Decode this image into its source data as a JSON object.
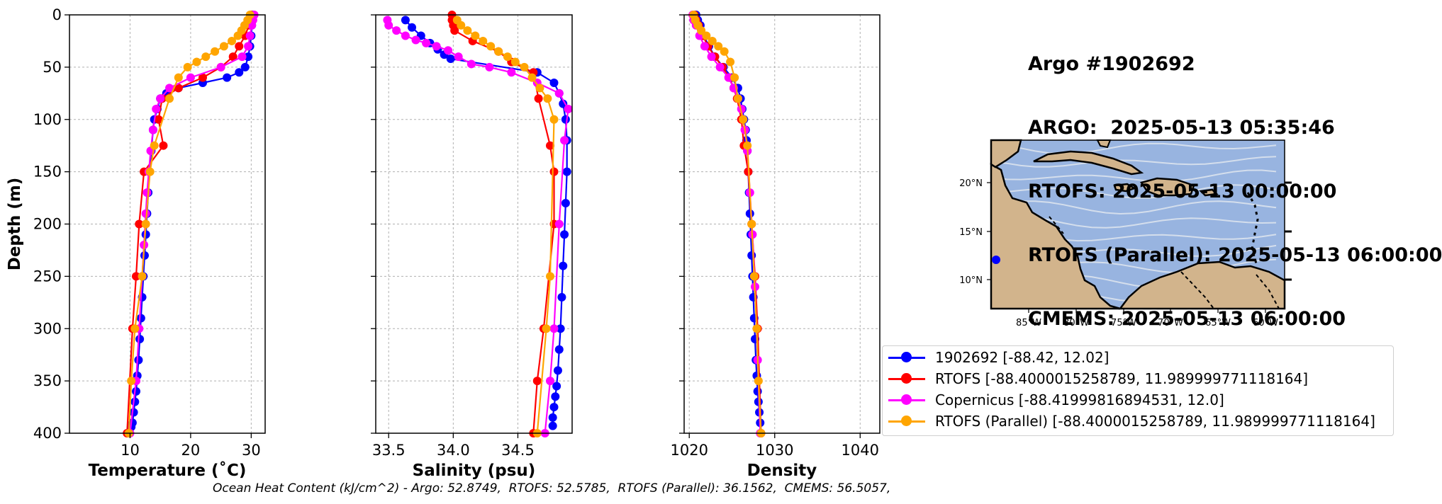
{
  "info_lines": [
    "Argo #1902692",
    "ARGO:  2025-05-13 05:35:46",
    "RTOFS: 2025-05-13 00:00:00",
    "RTOFS (Parallel): 2025-05-13 06:00:00",
    "CMEMS: 2025-05-13 06:00:00"
  ],
  "ohc_text": "Ocean Heat Content (kJ/cm^2) - Argo: 52.8749,  RTOFS: 52.5785,  RTOFS (Parallel): 36.1562,  CMEMS: 56.5057,",
  "legend": [
    {
      "label": "1902692 [-88.42, 12.02]",
      "color": "#0000ff"
    },
    {
      "label": "RTOFS [-88.4000015258789, 11.989999771118164]",
      "color": "#ff0000"
    },
    {
      "label": "Copernicus [-88.41999816894531, 12.0]",
      "color": "#ff00ff"
    },
    {
      "label": "RTOFS (Parallel) [-88.4000015258789, 11.989999771118164]",
      "color": "#ffa500"
    }
  ],
  "chart_data": [
    {
      "type": "line",
      "xlabel": "Temperature (˚C)",
      "ylabel": "Depth (m)",
      "xlim": [
        0,
        32.3
      ],
      "ylim": [
        400,
        0
      ],
      "xticks": [
        10,
        20,
        30
      ],
      "yticks": [
        0,
        50,
        100,
        150,
        200,
        250,
        300,
        350,
        400
      ],
      "grid": true,
      "series": [
        {
          "name": "1902692",
          "color": "#0000ff",
          "x": [
            30.2,
            30.1,
            30.0,
            29.8,
            29.5,
            29.0,
            28.0,
            26.0,
            22.0,
            18.0,
            16.0,
            15.0,
            14.5,
            14.0,
            13.8,
            13.5,
            13.2,
            13.0,
            12.8,
            12.6,
            12.4,
            12.2,
            12.0,
            11.8,
            11.6,
            11.4,
            11.2,
            11.0,
            10.8,
            10.6,
            10.4,
            10.2
          ],
          "y": [
            0,
            10,
            20,
            30,
            40,
            50,
            55,
            60,
            65,
            70,
            75,
            80,
            90,
            100,
            110,
            130,
            150,
            170,
            190,
            210,
            230,
            250,
            270,
            290,
            310,
            330,
            345,
            360,
            370,
            380,
            390,
            394
          ]
        },
        {
          "name": "RTOFS",
          "color": "#ff0000",
          "x": [
            30.0,
            29.6,
            29.0,
            28.0,
            27.0,
            25.0,
            22.0,
            18.0,
            15.3,
            14.7,
            15.5,
            12.3,
            11.5,
            11.0,
            10.4,
            9.5
          ],
          "y": [
            0,
            10,
            20,
            30,
            40,
            50,
            60,
            70,
            80,
            100,
            125,
            150,
            200,
            250,
            300,
            400
          ]
        },
        {
          "name": "Copernicus",
          "color": "#ff00ff",
          "x": [
            30.5,
            30.3,
            30.1,
            29.8,
            29.5,
            28.5,
            25.0,
            20.0,
            16.5,
            15.0,
            14.3,
            13.8,
            13.4,
            13.1,
            12.8,
            12.6,
            12.3,
            12.0,
            11.5,
            11.0,
            10.0
          ],
          "y": [
            0,
            5,
            10,
            20,
            30,
            40,
            50,
            60,
            70,
            80,
            90,
            110,
            130,
            150,
            170,
            190,
            220,
            250,
            300,
            350,
            400
          ]
        },
        {
          "name": "RTOFS (Parallel)",
          "color": "#ffa500",
          "x": [
            29.8,
            29.4,
            28.9,
            28.4,
            27.8,
            26.8,
            25.5,
            24.0,
            22.5,
            21.0,
            19.5,
            18.0,
            16.5,
            14.0,
            13.3,
            12.6,
            12.0,
            10.8,
            10.2,
            9.8
          ],
          "y": [
            0,
            5,
            10,
            15,
            20,
            25,
            30,
            35,
            40,
            45,
            50,
            60,
            80,
            125,
            150,
            200,
            250,
            300,
            350,
            400
          ]
        }
      ]
    },
    {
      "type": "line",
      "xlabel": "Salinity (psu)",
      "ylabel": "",
      "xlim": [
        33.4,
        34.92
      ],
      "ylim": [
        400,
        0
      ],
      "xticks": [
        33.5,
        34.0,
        34.5
      ],
      "yticks": [
        0,
        50,
        100,
        150,
        200,
        250,
        300,
        350,
        400
      ],
      "grid": true,
      "series": [
        {
          "name": "1902692",
          "color": "#0000ff",
          "x": [
            33.63,
            33.68,
            33.75,
            33.82,
            33.88,
            33.93,
            33.98,
            34.65,
            34.78,
            34.82,
            34.85,
            34.87,
            34.88,
            34.88,
            34.87,
            34.86,
            34.85,
            34.84,
            34.83,
            34.82,
            34.81,
            34.8,
            34.79,
            34.78,
            34.77,
            34.77
          ],
          "y": [
            5,
            12,
            20,
            27,
            33,
            38,
            42,
            55,
            65,
            75,
            85,
            100,
            120,
            150,
            180,
            210,
            240,
            270,
            300,
            320,
            340,
            355,
            365,
            375,
            385,
            393
          ]
        },
        {
          "name": "RTOFS",
          "color": "#ff0000",
          "x": [
            33.99,
            33.99,
            34.0,
            34.01,
            34.15,
            34.35,
            34.45,
            34.62,
            34.66,
            34.75,
            34.78,
            34.78,
            34.7,
            34.65,
            34.62
          ],
          "y": [
            0,
            5,
            10,
            15,
            25,
            35,
            45,
            55,
            80,
            125,
            150,
            200,
            300,
            350,
            400
          ]
        },
        {
          "name": "Copernicus",
          "color": "#ff00ff",
          "x": [
            33.49,
            33.5,
            33.56,
            33.63,
            33.71,
            33.79,
            33.87,
            33.96,
            34.04,
            34.14,
            34.28,
            34.45,
            34.65,
            34.82,
            34.89,
            34.86,
            34.82,
            34.78,
            34.75,
            34.71
          ],
          "y": [
            5,
            10,
            15,
            20,
            24,
            27,
            30,
            34,
            40,
            47,
            50,
            55,
            65,
            75,
            90,
            120,
            200,
            300,
            350,
            400
          ]
        },
        {
          "name": "RTOFS (Parallel)",
          "color": "#ffa500",
          "x": [
            34.03,
            34.06,
            34.11,
            34.17,
            34.23,
            34.29,
            34.35,
            34.42,
            34.48,
            34.55,
            34.61,
            34.67,
            34.73,
            34.78,
            34.75,
            34.72,
            34.65
          ],
          "y": [
            5,
            10,
            15,
            20,
            25,
            30,
            35,
            40,
            45,
            50,
            60,
            70,
            80,
            100,
            250,
            300,
            400
          ]
        }
      ]
    },
    {
      "type": "line",
      "xlabel": "Density",
      "ylabel": "",
      "xlim": [
        1019.4,
        1042.3
      ],
      "ylim": [
        400,
        0
      ],
      "xticks": [
        1020,
        1030,
        1040
      ],
      "yticks": [
        0,
        50,
        100,
        150,
        200,
        250,
        300,
        350,
        400
      ],
      "grid": true,
      "series": [
        {
          "name": "1902692",
          "color": "#0000ff",
          "x": [
            1020.8,
            1021.0,
            1021.3,
            1021.7,
            1022.3,
            1023.0,
            1024.0,
            1025.0,
            1025.7,
            1026.0,
            1026.2,
            1026.4,
            1026.6,
            1026.7,
            1026.8,
            1026.9,
            1027.0,
            1027.1,
            1027.2,
            1027.3,
            1027.4,
            1027.5,
            1027.6,
            1027.7,
            1027.8,
            1027.9,
            1028.0,
            1028.1,
            1028.2,
            1028.3
          ],
          "y": [
            0,
            5,
            10,
            20,
            30,
            40,
            50,
            60,
            70,
            80,
            90,
            100,
            110,
            120,
            130,
            150,
            170,
            190,
            210,
            230,
            250,
            270,
            290,
            310,
            330,
            345,
            360,
            370,
            380,
            390
          ]
        },
        {
          "name": "RTOFS",
          "color": "#ff0000",
          "x": [
            1020.6,
            1020.8,
            1021.1,
            1021.6,
            1022.2,
            1023.0,
            1023.9,
            1024.7,
            1025.2,
            1025.6,
            1026.1,
            1026.4,
            1026.9,
            1027.3,
            1027.7,
            1028.0,
            1028.4
          ],
          "y": [
            0,
            5,
            10,
            20,
            30,
            40,
            50,
            60,
            70,
            80,
            100,
            125,
            150,
            200,
            250,
            300,
            400
          ]
        },
        {
          "name": "Copernicus",
          "color": "#ff00ff",
          "x": [
            1020.4,
            1020.5,
            1020.8,
            1021.2,
            1021.8,
            1022.6,
            1023.6,
            1024.6,
            1025.2,
            1025.7,
            1026.1,
            1026.5,
            1026.8,
            1027.1,
            1027.4,
            1027.7,
            1028.0,
            1028.3
          ],
          "y": [
            0,
            5,
            10,
            20,
            30,
            40,
            50,
            60,
            70,
            80,
            90,
            110,
            130,
            170,
            210,
            260,
            330,
            400
          ]
        },
        {
          "name": "RTOFS (Parallel)",
          "color": "#ffa500",
          "x": [
            1020.5,
            1020.7,
            1021.0,
            1021.4,
            1022.0,
            1022.7,
            1023.4,
            1024.1,
            1024.8,
            1025.3,
            1025.7,
            1026.3,
            1026.8,
            1027.3,
            1027.6,
            1027.9,
            1028.1,
            1028.4
          ],
          "y": [
            0,
            5,
            10,
            15,
            20,
            25,
            30,
            35,
            45,
            60,
            80,
            100,
            125,
            200,
            250,
            300,
            350,
            400
          ]
        }
      ]
    }
  ],
  "map": {
    "lon_ticks": [
      "85°W",
      "80°W",
      "75°W",
      "70°W",
      "65°W",
      "60°W"
    ],
    "lat_ticks": [
      "20°N",
      "15°N",
      "10°N"
    ],
    "ocean_color": "#98b4e0",
    "land_color": "#d2b48c",
    "float_marker": {
      "lon": -88.42,
      "lat": 12.02,
      "color": "#0000ff"
    }
  }
}
